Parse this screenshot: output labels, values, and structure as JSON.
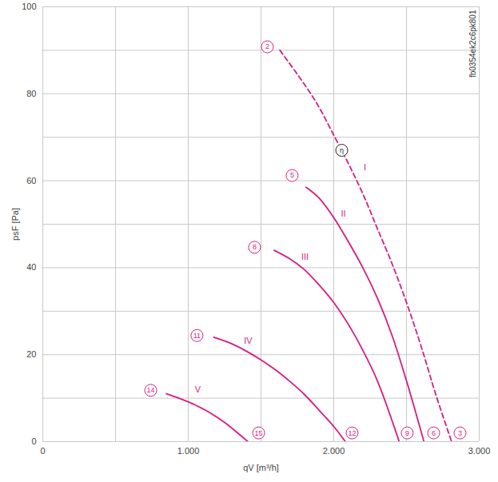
{
  "chart_data": {
    "type": "line",
    "x_label": "qV [m³/h]",
    "y_label": "psF [Pa]",
    "xlim": [
      0,
      3000
    ],
    "ylim": [
      0,
      100
    ],
    "xticks": [
      0,
      {
        "value": 500,
        "label": null
      },
      {
        "value": 1000,
        "label": "1.000"
      },
      {
        "value": 1500,
        "label": null
      },
      {
        "value": 2000,
        "label": "2.000"
      },
      {
        "value": 2500,
        "label": null
      },
      {
        "value": 3000,
        "label": "3.000"
      }
    ],
    "yticks": [
      0,
      {
        "value": 10,
        "label": null
      },
      20,
      {
        "value": 30,
        "label": null
      },
      40,
      {
        "value": 50,
        "label": null
      },
      60,
      {
        "value": 70,
        "label": null
      },
      80,
      {
        "value": 90,
        "label": null
      },
      100
    ],
    "grid": true,
    "series": [
      {
        "name": "I",
        "color": "#d81b84",
        "line_style": "dashed",
        "label_x": 2214,
        "label_y": 63,
        "x": [
          1630,
          1760,
          1880,
          2000,
          2100,
          2200,
          2300,
          2400,
          2500,
          2600,
          2700,
          2810
        ],
        "values": [
          90,
          84,
          78,
          70.5,
          64,
          57,
          49,
          41,
          32,
          22,
          11,
          0
        ]
      },
      {
        "name": "II",
        "color": "#d81b84",
        "line_style": "solid",
        "label_x": 2066,
        "label_y": 52.4,
        "x": [
          1810,
          1900,
          2000,
          2100,
          2200,
          2300,
          2400,
          2500,
          2620
        ],
        "values": [
          58.5,
          56,
          51.5,
          46,
          40,
          33,
          24.5,
          14,
          0
        ]
      },
      {
        "name": "III",
        "color": "#d81b84",
        "line_style": "solid",
        "label_x": 1802,
        "label_y": 42.5,
        "x": [
          1590,
          1700,
          1800,
          1900,
          2000,
          2100,
          2200,
          2300,
          2450
        ],
        "values": [
          44,
          42,
          39.5,
          36,
          32,
          27,
          21,
          14,
          0
        ]
      },
      {
        "name": "IV",
        "color": "#d81b84",
        "line_style": "solid",
        "label_x": 1412,
        "label_y": 23.2,
        "x": [
          1175,
          1300,
          1400,
          1500,
          1600,
          1700,
          1800,
          1900,
          2000,
          2080
        ],
        "values": [
          24,
          22.5,
          20.8,
          18.8,
          16.5,
          13.8,
          10.8,
          7.2,
          3.5,
          0
        ]
      },
      {
        "name": "V",
        "color": "#d81b84",
        "line_style": "solid",
        "label_x": 1066,
        "label_y": 12,
        "x": [
          850,
          950,
          1050,
          1150,
          1250,
          1350,
          1410
        ],
        "values": [
          11,
          9.8,
          8.4,
          6.6,
          4.4,
          1.7,
          0
        ]
      }
    ],
    "annotations": [
      {
        "text": "2",
        "x": 1544,
        "y": 90.8,
        "color": "#d81b84"
      },
      {
        "text": "5",
        "x": 1714,
        "y": 61.2,
        "color": "#d81b84"
      },
      {
        "text": "8",
        "x": 1456,
        "y": 44.7,
        "color": "#d81b84"
      },
      {
        "text": "11",
        "x": 1060,
        "y": 24.4,
        "color": "#d81b84"
      },
      {
        "text": "14",
        "x": 742,
        "y": 11.8,
        "color": "#d81b84"
      },
      {
        "text": "15",
        "x": 1484,
        "y": 2,
        "color": "#d81b84"
      },
      {
        "text": "12",
        "x": 2126,
        "y": 2,
        "color": "#d81b84"
      },
      {
        "text": "9",
        "x": 2505,
        "y": 2,
        "color": "#d81b84"
      },
      {
        "text": "6",
        "x": 2687,
        "y": 2,
        "color": "#d81b84"
      },
      {
        "text": "3",
        "x": 2868,
        "y": 2,
        "color": "#d81b84"
      },
      {
        "text": "η",
        "x": 2055,
        "y": 67,
        "color": "#222222"
      }
    ],
    "side_text": "fb0354ek2c6pk801"
  }
}
